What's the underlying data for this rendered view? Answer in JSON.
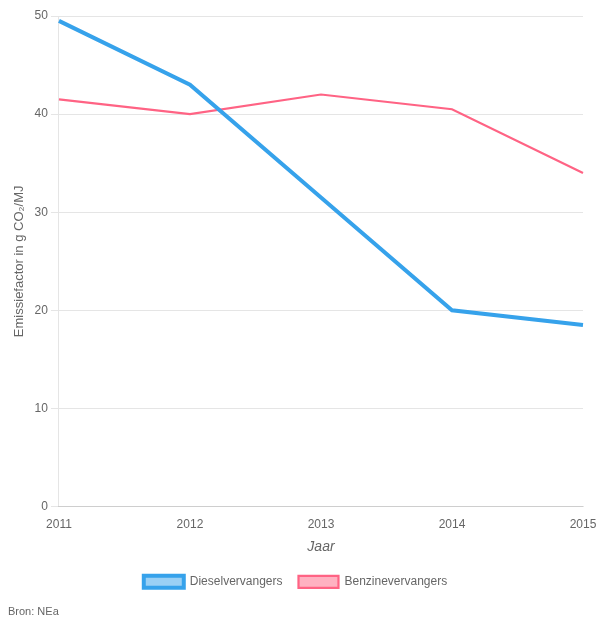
{
  "chart_data": {
    "type": "line",
    "categories": [
      "2011",
      "2012",
      "2013",
      "2014",
      "2015"
    ],
    "series": [
      {
        "name": "Dieselvervangers",
        "values": [
          49.5,
          43.0,
          31.5,
          20.0,
          18.5
        ]
      },
      {
        "name": "Benzinevervangers",
        "values": [
          41.5,
          40.0,
          42.0,
          40.5,
          34.0
        ]
      }
    ],
    "xlabel": "Jaar",
    "ylabel": "Emissiefactor in g CO₂/MJ",
    "ylim": [
      0,
      50
    ],
    "yticks": [
      0,
      10,
      20,
      30,
      40,
      50
    ],
    "grid": true,
    "legend": "bottom",
    "annotations": [
      "Bron: NEa"
    ]
  }
}
